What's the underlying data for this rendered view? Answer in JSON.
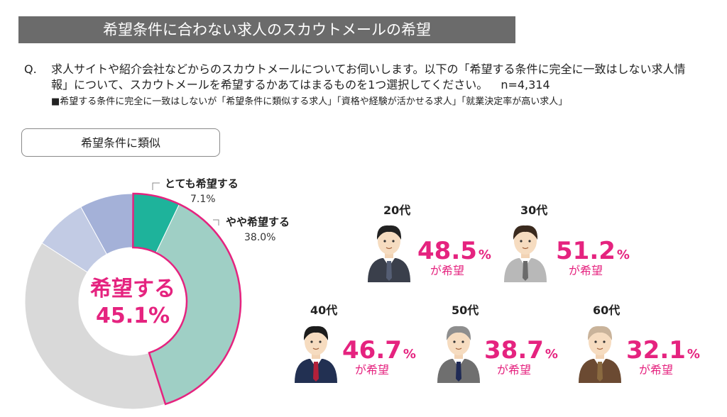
{
  "header": {
    "title": "希望条件に合わない求人のスカウトメールの希望"
  },
  "question": {
    "label": "Q.",
    "text": "求人サイトや紹介会社などからのスカウトメールについてお伺いします。以下の「希望する条件に完全に一致はしない求人情報」について、スカウトメールを希望するかあてはまるものを1つ選択してください。",
    "n": "n=4,314",
    "note": "■希望する条件に完全に一致はしないが「希望条件に類似する求人」「資格や経験が活かせる求人」「就業決定率が高い求人」"
  },
  "subheading": "希望条件に類似",
  "chart_data": [
    {
      "type": "pie",
      "title": "",
      "center_label": "希望する",
      "center_value": "45.1%",
      "slices": [
        {
          "label": "とても希望する",
          "value": 7.1,
          "value_label": "7.1%",
          "color": "#1eb39b"
        },
        {
          "label": "やや希望する",
          "value": 38.0,
          "value_label": "38.0%",
          "color": "#9fcfc5"
        },
        {
          "label": "",
          "value": 39.0,
          "color": "#d9d9d9"
        },
        {
          "label": "",
          "value": 7.9,
          "color": "#c2cbe4"
        },
        {
          "label": "",
          "value": 8.0,
          "color": "#a4b1d8"
        }
      ],
      "highlight_color": "#e5237f"
    },
    {
      "type": "table",
      "suffix": "%",
      "suffix_label": "が希望",
      "categories": [
        "20代",
        "30代",
        "40代",
        "50代",
        "60代"
      ],
      "values": [
        48.5,
        51.2,
        46.7,
        38.7,
        32.1
      ],
      "value_labels": [
        "48.5",
        "51.2",
        "46.7",
        "38.7",
        "32.1"
      ]
    }
  ],
  "colors": {
    "accent": "#e5237f",
    "title_bg": "#6b6b6b"
  },
  "icons": {
    "person": "person-icon"
  }
}
